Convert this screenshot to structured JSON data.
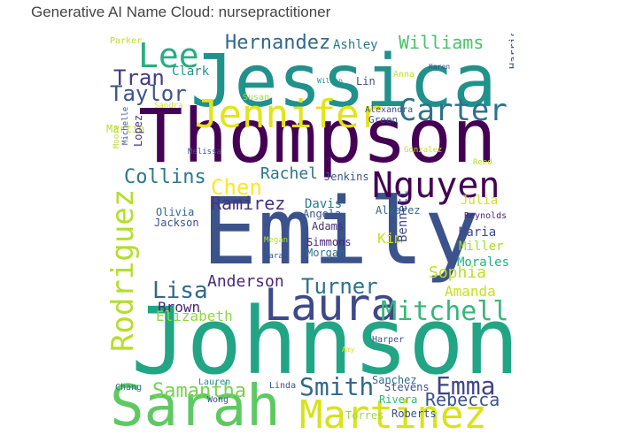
{
  "title": "Generative AI Name Cloud: nursepractitioner",
  "words": [
    {
      "text": "Jessica",
      "color": "#21918c"
    },
    {
      "text": "Thompson",
      "color": "#440154"
    },
    {
      "text": "Emily",
      "color": "#3b528b"
    },
    {
      "text": "Johnson",
      "color": "#21a585"
    },
    {
      "text": "Sarah",
      "color": "#5ec962"
    },
    {
      "text": "Martinez",
      "color": "#d8e219"
    },
    {
      "text": "Jennifer",
      "color": "#e3e418"
    },
    {
      "text": "Laura",
      "color": "#3e4989"
    },
    {
      "text": "Rodriguez",
      "color": "#b5de2b"
    },
    {
      "text": "Nguyen",
      "color": "#440154"
    },
    {
      "text": "Carter",
      "color": "#2c728e"
    },
    {
      "text": "Lee",
      "color": "#28ae80"
    },
    {
      "text": "Mitchell",
      "color": "#35b779"
    },
    {
      "text": "Smith",
      "color": "#31688e"
    },
    {
      "text": "Emma",
      "color": "#414487"
    },
    {
      "text": "Rebecca",
      "color": "#3b528b"
    },
    {
      "text": "Samantha",
      "color": "#7ad151"
    },
    {
      "text": "Chen",
      "color": "#fde725"
    },
    {
      "text": "Tran",
      "color": "#443a83"
    },
    {
      "text": "Taylor",
      "color": "#3b528b"
    },
    {
      "text": "Collins",
      "color": "#2a788e"
    },
    {
      "text": "Lisa",
      "color": "#31688e"
    },
    {
      "text": "Turner",
      "color": "#2c728e"
    },
    {
      "text": "Hernandez",
      "color": "#31688e"
    },
    {
      "text": "Williams",
      "color": "#4ac16d"
    },
    {
      "text": "Ramirez",
      "color": "#46337e"
    },
    {
      "text": "Sophia",
      "color": "#bddf26"
    },
    {
      "text": "Amanda",
      "color": "#c8e020"
    },
    {
      "text": "Rachel",
      "color": "#2c728e"
    },
    {
      "text": "Anderson",
      "color": "#482878"
    },
    {
      "text": "Brown",
      "color": "#482878"
    },
    {
      "text": "Elizabeth",
      "color": "#90d743"
    },
    {
      "text": "Kim",
      "color": "#c8e020"
    },
    {
      "text": "Julia",
      "color": "#cde11d"
    },
    {
      "text": "Maria",
      "color": "#3e4989"
    },
    {
      "text": "Miller",
      "color": "#a5db36"
    },
    {
      "text": "Morales",
      "color": "#27ad81"
    },
    {
      "text": "Ashley",
      "color": "#2a788e"
    },
    {
      "text": "Clark",
      "color": "#21918c"
    },
    {
      "text": "Olivia",
      "color": "#31688e"
    },
    {
      "text": "Jackson",
      "color": "#3b528b"
    },
    {
      "text": "Adams",
      "color": "#46337e"
    },
    {
      "text": "Simmons",
      "color": "#482475"
    },
    {
      "text": "Morgan",
      "color": "#2c728e"
    },
    {
      "text": "Davis",
      "color": "#2a788e"
    },
    {
      "text": "Angela",
      "color": "#39568c"
    },
    {
      "text": "Alvarez",
      "color": "#31688e"
    },
    {
      "text": "Jenkins",
      "color": "#38588c"
    },
    {
      "text": "Lin",
      "color": "#3b528b"
    },
    {
      "text": "Green",
      "color": "#3e4989"
    },
    {
      "text": "Alexandra",
      "color": "#3b528b"
    },
    {
      "text": "Bennett",
      "color": "#3e4989"
    },
    {
      "text": "Reynolds",
      "color": "#482878"
    },
    {
      "text": "Stevens",
      "color": "#3b528b"
    },
    {
      "text": "Sanchez",
      "color": "#2e6e8e"
    },
    {
      "text": "Rivera",
      "color": "#35b779"
    },
    {
      "text": "Roberts",
      "color": "#3b528b"
    },
    {
      "text": "Linda",
      "color": "#3b528b"
    },
    {
      "text": "Lauren",
      "color": "#21918c"
    },
    {
      "text": "Chang",
      "color": "#31688e"
    },
    {
      "text": "Harper",
      "color": "#3b528b"
    },
    {
      "text": "Torres",
      "color": "#a0da39"
    },
    {
      "text": "Wong",
      "color": "#3b528b"
    },
    {
      "text": "Martin",
      "color": "#bddf26"
    },
    {
      "text": "Lopez",
      "color": "#46337e"
    },
    {
      "text": "Harris",
      "color": "#3b528b"
    },
    {
      "text": "Parker",
      "color": "#bddf26"
    },
    {
      "text": "Wilson",
      "color": "#21918c"
    },
    {
      "text": "Anna",
      "color": "#c2df23"
    },
    {
      "text": "Karen",
      "color": "#3b528b"
    },
    {
      "text": "Susan",
      "color": "#a5db36"
    },
    {
      "text": "Sandra",
      "color": "#d8e219"
    },
    {
      "text": "Megan",
      "color": "#b5de2b"
    },
    {
      "text": "Sara",
      "color": "#3b528b"
    },
    {
      "text": "Gonzalez",
      "color": "#c8e020"
    },
    {
      "text": "Reed",
      "color": "#b5de2b"
    },
    {
      "text": "Melissa",
      "color": "#3b528b"
    },
    {
      "text": "Michelle",
      "color": "#3b528b"
    },
    {
      "text": "Moore",
      "color": "#b5de2b"
    },
    {
      "text": "Amy",
      "color": "#d8e219"
    }
  ]
}
